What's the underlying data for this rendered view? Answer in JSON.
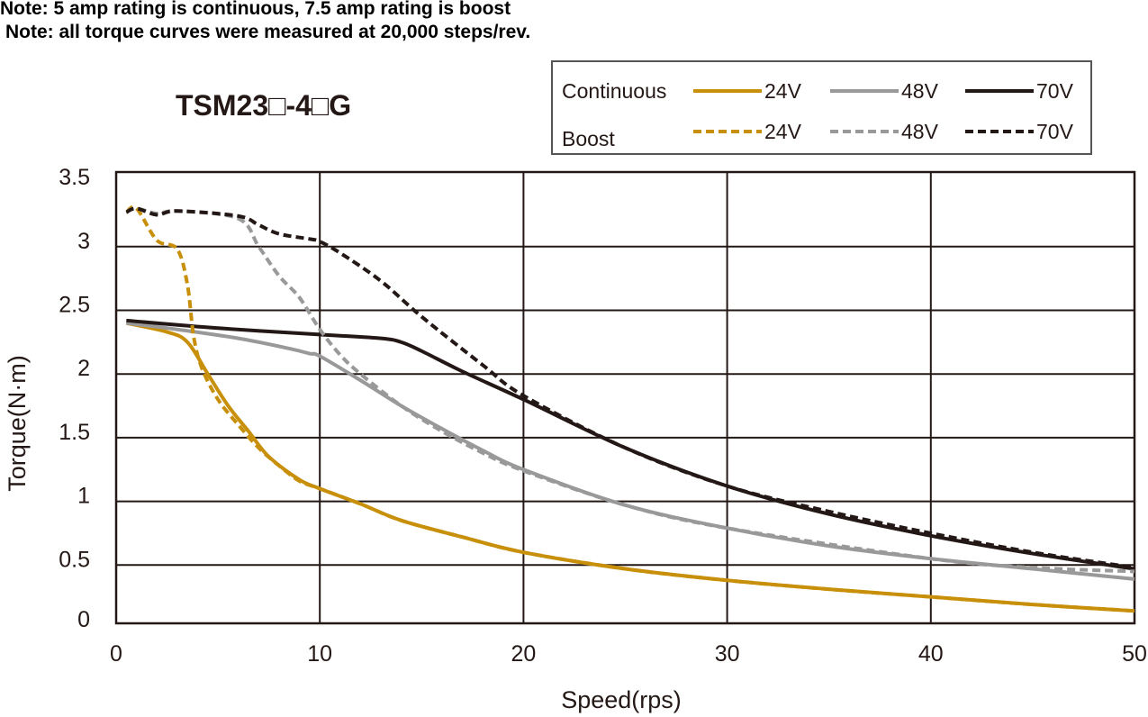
{
  "notes": [
    "Note: 5 amp rating is continuous, 7.5 amp rating is boost",
    "Note: all torque curves were measured at 20,000 steps/rev."
  ],
  "chart_data": {
    "type": "line",
    "title": "TSM23□-4□G",
    "xlabel": "Speed(rps)",
    "ylabel": "Torque(N·m)",
    "xlim": [
      0,
      50
    ],
    "ylim": [
      0,
      3.5
    ],
    "xticks": [
      0,
      10,
      20,
      30,
      40,
      50
    ],
    "yticks": [
      0,
      0.5,
      1,
      1.5,
      2,
      2.5,
      3,
      3.5
    ],
    "xtick_labels": [
      "0",
      "10",
      "20",
      "30",
      "40",
      "50"
    ],
    "ytick_labels": [
      "0",
      "0.5",
      "1",
      "1.5",
      "2",
      "2.5",
      "3",
      "3.5"
    ],
    "grid": true,
    "legend_placement": "top-right",
    "legend_rows": [
      "Continuous",
      "Boost"
    ],
    "series": [
      {
        "name": "24V",
        "group": "Continuous",
        "color": "#c8900a",
        "dashed": false,
        "points": [
          [
            0.5,
            2.4
          ],
          [
            2.5,
            2.33
          ],
          [
            3.5,
            2.25
          ],
          [
            4.5,
            2.0
          ],
          [
            5.5,
            1.75
          ],
          [
            6.5,
            1.55
          ],
          [
            7.5,
            1.35
          ],
          [
            9,
            1.17
          ],
          [
            10,
            1.1
          ],
          [
            12,
            0.98
          ],
          [
            14,
            0.85
          ],
          [
            17,
            0.72
          ],
          [
            20,
            0.6
          ],
          [
            25,
            0.47
          ],
          [
            30,
            0.38
          ],
          [
            35,
            0.31
          ],
          [
            40,
            0.25
          ],
          [
            45,
            0.19
          ],
          [
            50,
            0.14
          ]
        ]
      },
      {
        "name": "48V",
        "group": "Continuous",
        "color": "#999999",
        "dashed": false,
        "points": [
          [
            0.5,
            2.4
          ],
          [
            3,
            2.35
          ],
          [
            6,
            2.28
          ],
          [
            8.5,
            2.2
          ],
          [
            9.5,
            2.16
          ],
          [
            10,
            2.14
          ],
          [
            12,
            1.95
          ],
          [
            14,
            1.75
          ],
          [
            16,
            1.57
          ],
          [
            18,
            1.4
          ],
          [
            20,
            1.25
          ],
          [
            25,
            0.97
          ],
          [
            30,
            0.79
          ],
          [
            35,
            0.65
          ],
          [
            40,
            0.55
          ],
          [
            45,
            0.47
          ],
          [
            50,
            0.39
          ]
        ]
      },
      {
        "name": "70V",
        "group": "Continuous",
        "color": "#231815",
        "dashed": false,
        "points": [
          [
            0.5,
            2.42
          ],
          [
            5,
            2.36
          ],
          [
            10,
            2.31
          ],
          [
            13,
            2.28
          ],
          [
            14,
            2.25
          ],
          [
            15,
            2.18
          ],
          [
            17,
            2.02
          ],
          [
            20,
            1.8
          ],
          [
            25,
            1.42
          ],
          [
            30,
            1.12
          ],
          [
            35,
            0.9
          ],
          [
            40,
            0.73
          ],
          [
            45,
            0.59
          ],
          [
            50,
            0.47
          ]
        ]
      },
      {
        "name": "24V",
        "group": "Boost",
        "color": "#c8900a",
        "dashed": true,
        "points": [
          [
            0.5,
            3.27
          ],
          [
            1,
            3.3
          ],
          [
            2,
            3.05
          ],
          [
            3,
            2.98
          ],
          [
            3.5,
            2.7
          ],
          [
            3.8,
            2.3
          ],
          [
            4.2,
            2.05
          ],
          [
            5,
            1.8
          ],
          [
            6,
            1.6
          ],
          [
            7,
            1.42
          ],
          [
            8,
            1.28
          ],
          [
            9,
            1.16
          ],
          [
            10,
            1.1
          ],
          [
            12,
            0.98
          ],
          [
            14,
            0.85
          ],
          [
            17,
            0.72
          ],
          [
            20,
            0.6
          ],
          [
            25,
            0.47
          ],
          [
            30,
            0.38
          ],
          [
            35,
            0.31
          ],
          [
            40,
            0.25
          ],
          [
            45,
            0.19
          ],
          [
            50,
            0.14
          ]
        ]
      },
      {
        "name": "48V",
        "group": "Boost",
        "color": "#999999",
        "dashed": true,
        "points": [
          [
            0.5,
            3.27
          ],
          [
            1,
            3.3
          ],
          [
            2,
            3.26
          ],
          [
            3,
            3.28
          ],
          [
            6,
            3.22
          ],
          [
            7,
            3.0
          ],
          [
            8,
            2.77
          ],
          [
            9,
            2.6
          ],
          [
            10,
            2.35
          ],
          [
            11,
            2.15
          ],
          [
            12,
            2.0
          ],
          [
            14,
            1.75
          ],
          [
            16,
            1.55
          ],
          [
            18,
            1.38
          ],
          [
            20,
            1.24
          ],
          [
            25,
            0.97
          ],
          [
            30,
            0.79
          ],
          [
            40,
            0.55
          ],
          [
            45,
            0.48
          ],
          [
            50,
            0.45
          ]
        ]
      },
      {
        "name": "70V",
        "group": "Boost",
        "color": "#231815",
        "dashed": true,
        "points": [
          [
            0.5,
            3.27
          ],
          [
            1,
            3.3
          ],
          [
            2,
            3.25
          ],
          [
            3,
            3.28
          ],
          [
            6,
            3.24
          ],
          [
            7,
            3.17
          ],
          [
            8,
            3.1
          ],
          [
            9.5,
            3.06
          ],
          [
            10,
            3.04
          ],
          [
            11,
            2.95
          ],
          [
            13,
            2.73
          ],
          [
            15,
            2.45
          ],
          [
            18,
            2.07
          ],
          [
            20,
            1.83
          ],
          [
            25,
            1.42
          ],
          [
            30,
            1.12
          ],
          [
            35,
            0.92
          ],
          [
            40,
            0.75
          ],
          [
            45,
            0.6
          ],
          [
            50,
            0.48
          ]
        ]
      }
    ]
  }
}
